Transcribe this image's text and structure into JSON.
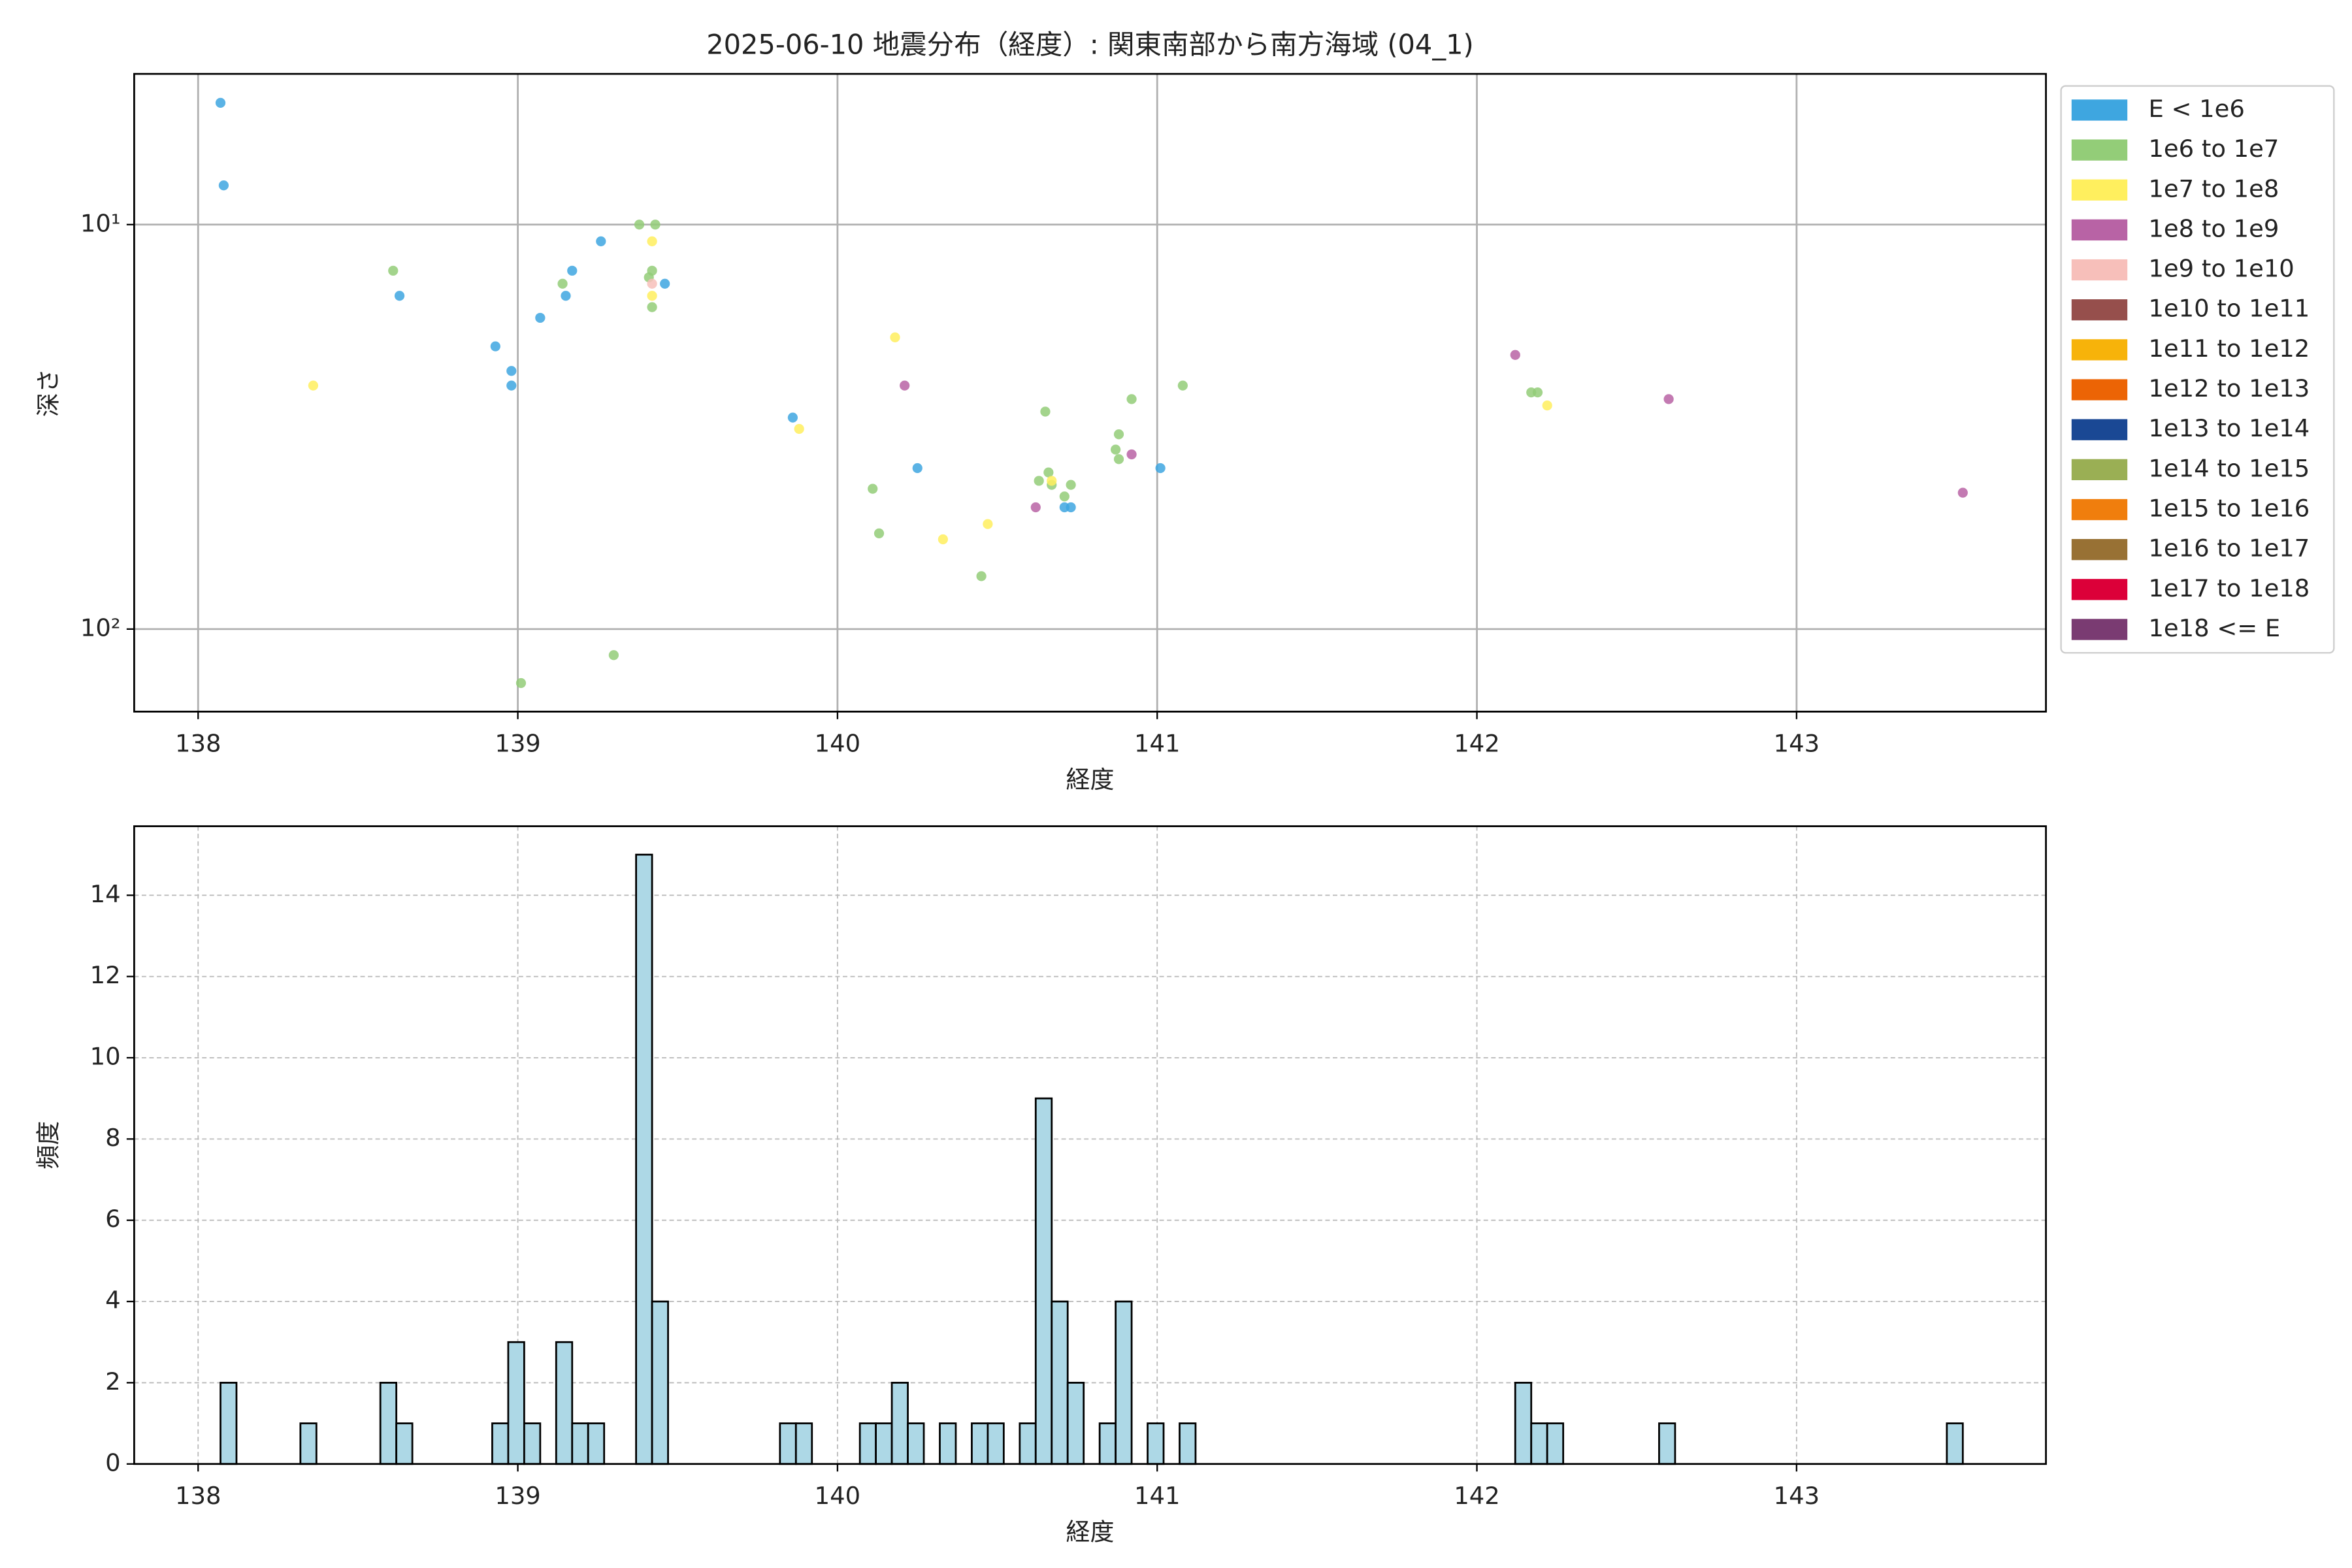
{
  "chart_data": [
    {
      "type": "scatter",
      "title": "2025-06-10 地震分布（経度）: 関東南部から南方海域 (04_1)",
      "x_label": "経度",
      "y_label": "深さ",
      "xlim": [
        137.8,
        143.78
      ],
      "xticks": [
        138,
        139,
        140,
        141,
        142,
        143
      ],
      "ylim": [
        4.24,
        160
      ],
      "yscale": "log",
      "invert_y": true,
      "yticks": [
        {
          "value": 10,
          "label": "10¹"
        },
        {
          "value": 100,
          "label": "10²"
        }
      ],
      "grid": true,
      "legend": "outside right",
      "series": [
        {
          "name": "E < 1e6",
          "color": "#3ea6e0",
          "x": [
            138.07,
            138.08,
            138.63,
            138.93,
            138.98,
            138.98,
            139.07,
            139.15,
            139.17,
            139.26,
            139.46,
            139.86,
            140.25,
            140.71,
            140.73,
            141.01
          ],
          "y": [
            5.0,
            8.0,
            15,
            20,
            23,
            25,
            17,
            15,
            13,
            11,
            14,
            30,
            40,
            50,
            50,
            40
          ]
        },
        {
          "name": "1e6 to 1e7",
          "color": "#93cd78",
          "x": [
            138.61,
            139.14,
            139.38,
            139.43,
            139.42,
            139.41,
            139.42,
            140.11,
            140.13,
            140.45,
            140.65,
            140.63,
            140.66,
            140.67,
            140.71,
            140.73,
            140.87,
            140.88,
            140.88,
            140.92,
            141.08,
            142.17,
            142.19,
            139.3,
            139.01
          ],
          "y": [
            13,
            14,
            10,
            10,
            13,
            13.5,
            16,
            45,
            58,
            74,
            29,
            43,
            41,
            44,
            47,
            44,
            36,
            33,
            38,
            27,
            25,
            26,
            26,
            116,
            136
          ]
        },
        {
          "name": "1e7 to 1e8",
          "color": "#ffef5e",
          "x": [
            138.36,
            139.42,
            139.42,
            139.88,
            140.18,
            140.33,
            140.47,
            140.67,
            142.22
          ],
          "y": [
            25,
            11,
            15,
            32,
            19,
            60,
            55,
            43,
            28
          ]
        },
        {
          "name": "1e8 to 1e9",
          "color": "#b863a5",
          "x": [
            140.21,
            140.62,
            140.92,
            142.12,
            142.6,
            143.52
          ],
          "y": [
            25,
            50,
            37,
            21,
            27,
            46
          ]
        },
        {
          "name": "1e9 to 1e10",
          "color": "#f7bfba",
          "x": [
            139.42
          ],
          "y": [
            14
          ]
        },
        {
          "name": "1e10 to 1e11",
          "color": "#964f4c",
          "x": [],
          "y": []
        },
        {
          "name": "1e11 to 1e12",
          "color": "#f7b30a",
          "x": [],
          "y": []
        },
        {
          "name": "1e12 to 1e13",
          "color": "#ec6405",
          "x": [],
          "y": []
        },
        {
          "name": "1e13 to 1e14",
          "color": "#1a4894",
          "x": [],
          "y": []
        },
        {
          "name": "1e14 to 1e15",
          "color": "#9aaf54",
          "x": [],
          "y": []
        },
        {
          "name": "1e15 to 1e16",
          "color": "#f07e0d",
          "x": [],
          "y": []
        },
        {
          "name": "1e16 to 1e17",
          "color": "#987134",
          "x": [],
          "y": []
        },
        {
          "name": "1e17 to 1e18",
          "color": "#dc0039",
          "x": [],
          "y": []
        },
        {
          "name": "1e18 <= E",
          "color": "#7a3b72",
          "x": [],
          "y": []
        }
      ]
    },
    {
      "type": "histogram",
      "x_label": "経度",
      "y_label": "頻度",
      "color": "#add8e6",
      "xlim": [
        137.8,
        143.78
      ],
      "xticks": [
        138,
        139,
        140,
        141,
        142,
        143
      ],
      "ylim": [
        0,
        15.7
      ],
      "yticks": [
        0,
        2,
        4,
        6,
        8,
        10,
        12,
        14
      ],
      "grid": true,
      "bins": [
        138.07,
        138.12,
        138.17,
        138.22,
        138.27,
        138.32,
        138.37,
        138.42,
        138.47,
        138.52,
        138.57,
        138.62,
        138.67,
        138.72,
        138.77,
        138.82,
        138.87,
        138.92,
        138.97,
        139.02,
        139.07,
        139.12,
        139.17,
        139.22,
        139.27,
        139.32,
        139.37,
        139.42,
        139.47,
        139.52,
        139.57,
        139.62,
        139.67,
        139.72,
        139.77,
        139.82,
        139.87,
        139.92,
        139.97,
        140.02,
        140.07,
        140.12,
        140.17,
        140.22,
        140.27,
        140.32,
        140.37,
        140.42,
        140.47,
        140.52,
        140.57,
        140.62,
        140.67,
        140.72,
        140.77,
        140.82,
        140.87,
        140.92,
        140.97,
        141.02,
        141.07,
        141.12,
        141.17,
        141.22,
        141.27,
        141.32,
        141.37,
        141.42,
        141.47,
        141.52,
        141.57,
        141.62,
        141.67,
        141.72,
        141.77,
        141.82,
        141.87,
        141.92,
        141.97,
        142.02,
        142.07,
        142.12,
        142.17,
        142.22,
        142.27,
        142.32,
        142.37,
        142.42,
        142.47,
        142.52,
        142.57,
        142.62,
        142.67,
        142.72,
        142.77,
        142.82,
        142.87,
        142.92,
        142.97,
        143.02,
        143.07,
        143.12,
        143.17,
        143.22,
        143.27,
        143.32,
        143.37,
        143.42,
        143.47,
        143.52,
        143.57
      ],
      "counts": [
        2,
        0,
        0,
        0,
        0,
        1,
        0,
        0,
        0,
        0,
        2,
        1,
        0,
        0,
        0,
        0,
        0,
        1,
        3,
        1,
        0,
        3,
        1,
        1,
        0,
        0,
        15,
        4,
        0,
        0,
        0,
        0,
        0,
        0,
        0,
        1,
        1,
        0,
        0,
        0,
        1,
        1,
        2,
        1,
        0,
        1,
        0,
        1,
        1,
        0,
        1,
        9,
        4,
        2,
        0,
        1,
        4,
        0,
        1,
        0,
        1,
        0,
        0,
        0,
        0,
        0,
        0,
        0,
        0,
        0,
        0,
        0,
        0,
        0,
        0,
        0,
        0,
        0,
        0,
        0,
        0,
        2,
        1,
        1,
        0,
        0,
        0,
        0,
        0,
        0,
        1,
        0,
        0,
        0,
        0,
        0,
        0,
        0,
        0,
        0,
        0,
        0,
        0,
        0,
        0,
        0,
        0,
        0,
        1,
        0
      ]
    }
  ]
}
